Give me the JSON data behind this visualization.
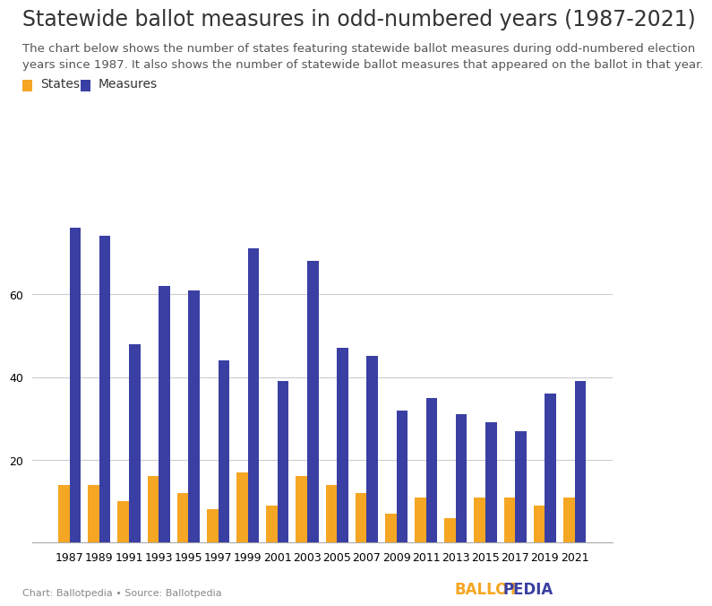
{
  "title": "Statewide ballot measures in odd-numbered years (1987-2021)",
  "subtitle_line1": "The chart below shows the number of states featuring statewide ballot measures during odd-numbered election",
  "subtitle_line2": "years since 1987. It also shows the number of statewide ballot measures that appeared on the ballot in that year.",
  "years": [
    1987,
    1989,
    1991,
    1993,
    1995,
    1997,
    1999,
    2001,
    2003,
    2005,
    2007,
    2009,
    2011,
    2013,
    2015,
    2017,
    2019,
    2021
  ],
  "states": [
    14,
    14,
    10,
    16,
    12,
    8,
    17,
    9,
    16,
    14,
    12,
    7,
    11,
    6,
    11,
    11,
    9,
    11
  ],
  "measures": [
    76,
    74,
    48,
    62,
    61,
    44,
    71,
    39,
    68,
    47,
    45,
    32,
    35,
    31,
    29,
    27,
    36,
    39
  ],
  "states_color": "#F5A623",
  "measures_color": "#3A3FA3",
  "background_color": "#FFFFFF",
  "legend_labels": [
    "States",
    "Measures"
  ],
  "ylim": [
    0,
    85
  ],
  "yticks": [
    20,
    40,
    60
  ],
  "footer_left": "Chart: Ballotpedia • Source: Ballotpedia",
  "footer_right_ballot": "BALLOT",
  "footer_right_pedia": "PEDIA",
  "footer_right_color_ballot": "#F5A623",
  "footer_right_color_pedia": "#3A3FA3",
  "title_fontsize": 17,
  "subtitle_fontsize": 9.5,
  "axis_fontsize": 9,
  "legend_fontsize": 10,
  "bar_width": 0.38
}
